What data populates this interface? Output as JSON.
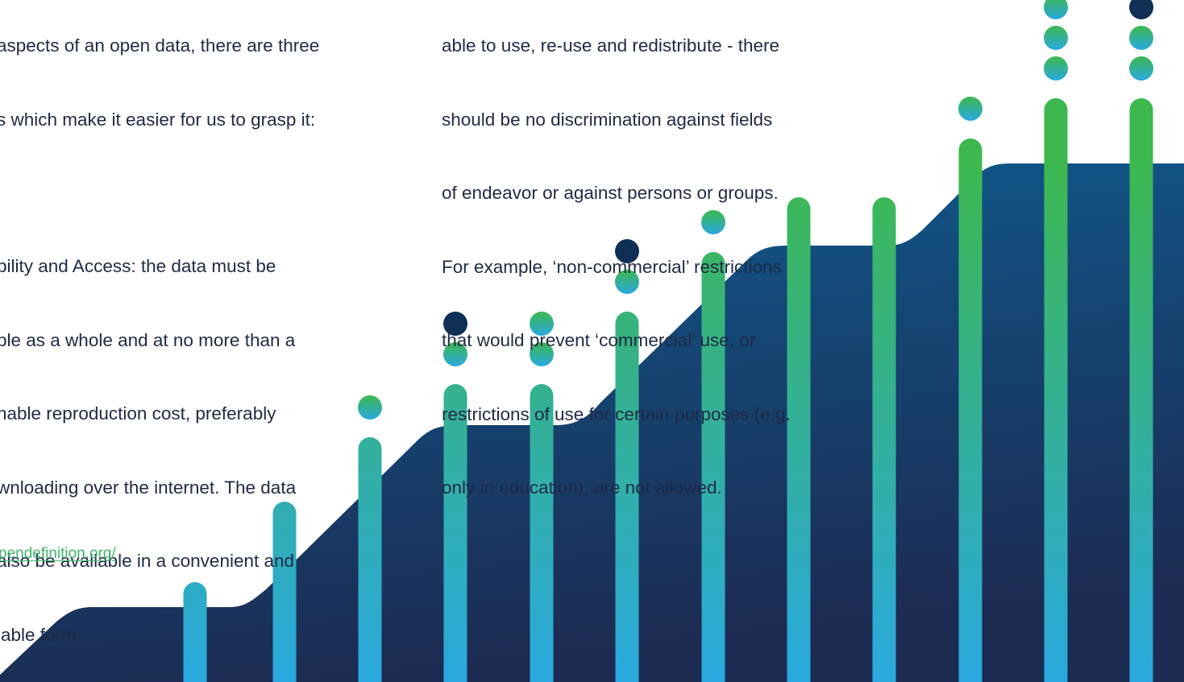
{
  "left_text": {
    "intro_lines": [
      "aspects of an open data, there are three",
      "s which make it easier for us to grasp it:"
    ],
    "availability_lines": [
      "bility and Access: the data must be",
      "ble as a whole and at no more than a",
      "nable reproduction cost, preferably",
      "wnloading over the internet. The data",
      "also be available in a convenient and",
      "iable form."
    ]
  },
  "right_text": {
    "lines": [
      "able to use, re-use and redistribute - there",
      "should be no discrimination against fields",
      "of endeavor or against persons or groups.",
      "For example, ‘non-commercial’ restrictions",
      "that would prevent ‘commercial’ use, or",
      "restrictions of use for certain purposes (e.g.",
      "only in education), are not allowed."
    ]
  },
  "source_link": {
    "text": "pendefinition.org/"
  },
  "decoration": {
    "bar_count": 12,
    "dots_above_bars": [
      0,
      0,
      1,
      1,
      2,
      1,
      1,
      0,
      0,
      1,
      3,
      2
    ],
    "dark_dot_markers": [
      3,
      5,
      11
    ],
    "colors": {
      "bar_top": "#3db84f",
      "bar_bottom": "#2aa9e0",
      "dark_dot": "#0f2f55",
      "wave_top": "#0e5a8e",
      "wave_bottom": "#1c2c54",
      "text": "#1f2a44",
      "link": "#3fb56b"
    }
  }
}
